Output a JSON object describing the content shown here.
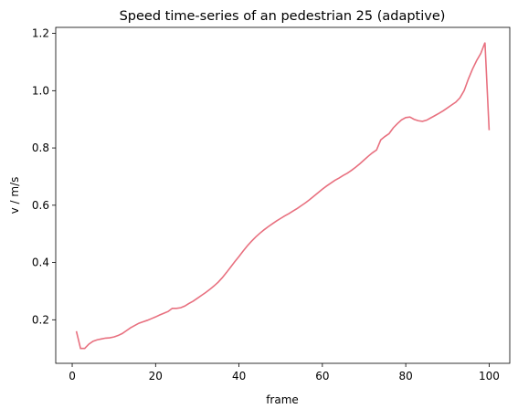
{
  "chart_data": {
    "type": "line",
    "title": "Speed time-series of an pedestrian 25 (adaptive)",
    "xlabel": "frame",
    "ylabel": "v / m/s",
    "x": [
      1,
      2,
      3,
      4,
      5,
      6,
      7,
      8,
      9,
      10,
      11,
      12,
      13,
      14,
      15,
      16,
      17,
      18,
      19,
      20,
      21,
      22,
      23,
      24,
      25,
      26,
      27,
      28,
      29,
      30,
      31,
      32,
      33,
      34,
      35,
      36,
      37,
      38,
      39,
      40,
      41,
      42,
      43,
      44,
      45,
      46,
      47,
      48,
      49,
      50,
      51,
      52,
      53,
      54,
      55,
      56,
      57,
      58,
      59,
      60,
      61,
      62,
      63,
      64,
      65,
      66,
      67,
      68,
      69,
      70,
      71,
      72,
      73,
      74,
      75,
      76,
      77,
      78,
      79,
      80,
      81,
      82,
      83,
      84,
      85,
      86,
      87,
      88,
      89,
      90,
      91,
      92,
      93,
      94,
      95,
      96,
      97,
      98,
      99,
      100
    ],
    "series": [
      {
        "color": "#e8707f",
        "values": [
          0.16,
          0.1,
          0.1,
          0.115,
          0.125,
          0.13,
          0.133,
          0.136,
          0.137,
          0.14,
          0.145,
          0.152,
          0.162,
          0.172,
          0.18,
          0.188,
          0.193,
          0.198,
          0.204,
          0.21,
          0.217,
          0.223,
          0.229,
          0.24,
          0.24,
          0.242,
          0.248,
          0.257,
          0.265,
          0.275,
          0.285,
          0.295,
          0.306,
          0.318,
          0.331,
          0.347,
          0.365,
          0.384,
          0.403,
          0.421,
          0.44,
          0.458,
          0.474,
          0.489,
          0.502,
          0.514,
          0.525,
          0.535,
          0.545,
          0.554,
          0.563,
          0.571,
          0.58,
          0.589,
          0.599,
          0.609,
          0.62,
          0.632,
          0.644,
          0.656,
          0.667,
          0.677,
          0.687,
          0.695,
          0.704,
          0.712,
          0.722,
          0.733,
          0.745,
          0.758,
          0.771,
          0.783,
          0.793,
          0.828,
          0.84,
          0.85,
          0.87,
          0.885,
          0.898,
          0.906,
          0.908,
          0.9,
          0.895,
          0.893,
          0.897,
          0.905,
          0.913,
          0.921,
          0.93,
          0.94,
          0.95,
          0.96,
          0.975,
          1.0,
          1.04,
          1.075,
          1.105,
          1.13,
          1.168,
          0.862
        ]
      }
    ],
    "xlim": [
      -3.95,
      104.95
    ],
    "ylim": [
      0.048,
      1.221
    ],
    "xticks": [
      0,
      20,
      40,
      60,
      80,
      100
    ],
    "yticks": [
      0.2,
      0.4,
      0.6,
      0.8,
      {
        "value": 1,
        "label": "1.0"
      },
      {
        "value": 1.2,
        "label": "1.2"
      }
    ]
  }
}
